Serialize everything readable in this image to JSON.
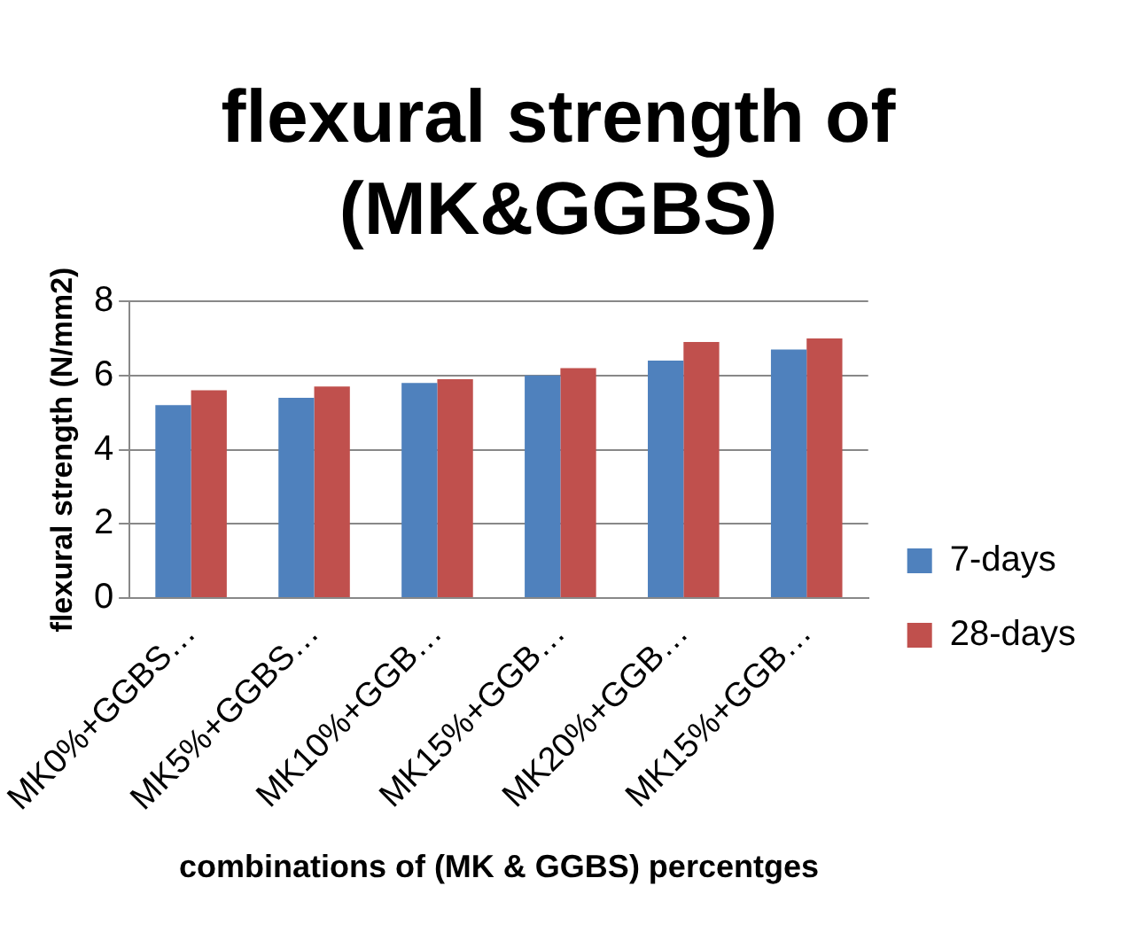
{
  "chart_data": {
    "type": "bar",
    "title": "flexural strength of (MK&GGBS)",
    "xlabel": "combinations of (MK & GGBS) percentges",
    "ylabel": "flexural strength (N/mm2)",
    "categories": [
      "MK0%+GGBS…",
      "MK5%+GGBS…",
      "MK10%+GGB…",
      "MK15%+GGB…",
      "MK20%+GGB…",
      "MK15%+GGB…"
    ],
    "series": [
      {
        "name": "7-days",
        "color": "#4f81bd",
        "values": [
          5.2,
          5.4,
          5.8,
          6.0,
          6.4,
          6.7
        ]
      },
      {
        "name": "28-days",
        "color": "#c0504d",
        "values": [
          5.6,
          5.7,
          5.9,
          6.2,
          6.9,
          7.0
        ]
      }
    ],
    "ylim": [
      0,
      8
    ],
    "yticks": [
      0,
      2,
      4,
      6,
      8
    ],
    "grid": "y",
    "legend": "right"
  }
}
